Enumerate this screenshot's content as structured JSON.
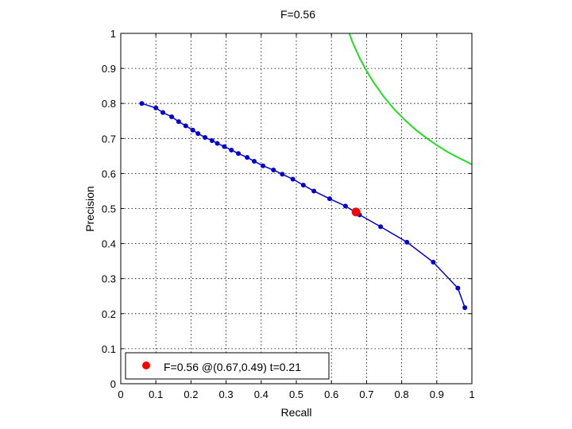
{
  "chart_data": {
    "type": "line",
    "title": "F=0.56",
    "xlabel": "Recall",
    "ylabel": "Precision",
    "xlim": [
      0,
      1
    ],
    "ylim": [
      0,
      1
    ],
    "grid": true,
    "legend_position": "bottom-left",
    "x_ticks": [
      "0",
      "0.1",
      "0.2",
      "0.3",
      "0.4",
      "0.5",
      "0.6",
      "0.7",
      "0.8",
      "0.9",
      "1"
    ],
    "y_ticks": [
      "0",
      "0.1",
      "0.2",
      "0.3",
      "0.4",
      "0.5",
      "0.6",
      "0.7",
      "0.8",
      "0.9",
      "1"
    ],
    "series": [
      {
        "color": "#0000cc",
        "marker": "dot",
        "points": [
          [
            0.06,
            0.8
          ],
          [
            0.1,
            0.787
          ],
          [
            0.12,
            0.774
          ],
          [
            0.145,
            0.762
          ],
          [
            0.165,
            0.748
          ],
          [
            0.185,
            0.736
          ],
          [
            0.205,
            0.724
          ],
          [
            0.22,
            0.714
          ],
          [
            0.24,
            0.703
          ],
          [
            0.26,
            0.694
          ],
          [
            0.275,
            0.686
          ],
          [
            0.295,
            0.677
          ],
          [
            0.315,
            0.667
          ],
          [
            0.335,
            0.657
          ],
          [
            0.36,
            0.646
          ],
          [
            0.38,
            0.635
          ],
          [
            0.405,
            0.622
          ],
          [
            0.435,
            0.61
          ],
          [
            0.46,
            0.598
          ],
          [
            0.49,
            0.584
          ],
          [
            0.52,
            0.567
          ],
          [
            0.55,
            0.55
          ],
          [
            0.595,
            0.528
          ],
          [
            0.64,
            0.507
          ],
          [
            0.68,
            0.482
          ],
          [
            0.74,
            0.448
          ],
          [
            0.815,
            0.404
          ],
          [
            0.89,
            0.347
          ],
          [
            0.96,
            0.273
          ],
          [
            0.98,
            0.217
          ]
        ]
      },
      {
        "color": "#22dd22",
        "marker": "none",
        "points": [
          [
            0.651,
            1.0
          ],
          [
            0.66,
            0.975
          ],
          [
            0.68,
            0.93
          ],
          [
            0.7,
            0.893
          ],
          [
            0.72,
            0.86
          ],
          [
            0.75,
            0.818
          ],
          [
            0.78,
            0.782
          ],
          [
            0.81,
            0.752
          ],
          [
            0.84,
            0.725
          ],
          [
            0.87,
            0.702
          ],
          [
            0.9,
            0.681
          ],
          [
            0.93,
            0.662
          ],
          [
            0.96,
            0.646
          ],
          [
            1.0,
            0.626
          ]
        ]
      },
      {
        "color": "#ff0000",
        "marker": "big-dot",
        "points": [
          [
            0.67,
            0.49
          ]
        ]
      }
    ],
    "legend": {
      "label": "F=0.56 @(0.67,0.49) t=0.21",
      "color": "#ff0000"
    }
  }
}
